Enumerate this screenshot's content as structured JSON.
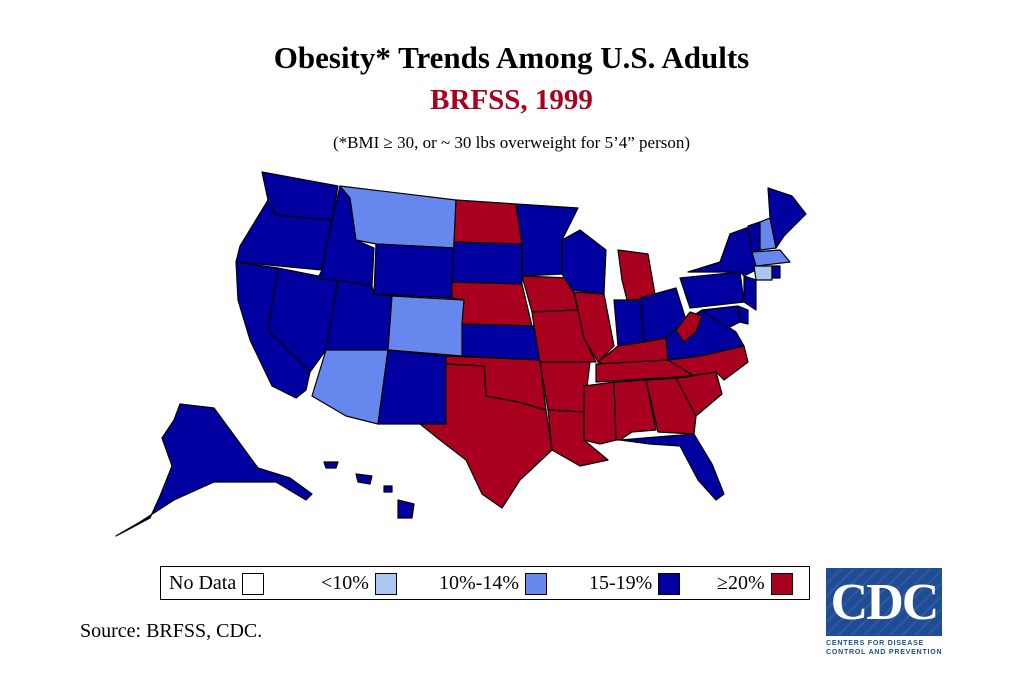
{
  "header": {
    "title": "Obesity* Trends Among U.S. Adults",
    "subtitle": "BRFSS, 1999",
    "note": "(*BMI ≥ 30, or ~ 30 lbs overweight for 5’4” person)"
  },
  "colors": {
    "no_data": "#ffffff",
    "lt10": "#a9c7f0",
    "10_14": "#6688ee",
    "15_19": "#0000a0",
    "ge20": "#a8001e",
    "subtitle": "#a8001e",
    "border": "#000000",
    "cdc_blue": "#1f4c94"
  },
  "legend": {
    "items": [
      {
        "label": "No Data",
        "key": "no_data"
      },
      {
        "label": "<10%",
        "key": "lt10"
      },
      {
        "label": "10%-14%",
        "key": "10_14"
      },
      {
        "label": "15-19%",
        "key": "15_19"
      },
      {
        "label": "≥20%",
        "key": "ge20"
      }
    ]
  },
  "map_data": {
    "categories": {
      "10_14": [
        "MT",
        "CO",
        "AZ",
        "NH",
        "MA"
      ],
      "lt10": [
        "CT"
      ],
      "ge20": [
        "ND",
        "NE",
        "IA",
        "MO",
        "IL",
        "MI",
        "WV",
        "KY",
        "TN",
        "AR",
        "OK",
        "TX",
        "LA",
        "MS",
        "AL",
        "GA",
        "SC",
        "NC"
      ],
      "15_19": [
        "WA",
        "OR",
        "CA",
        "NV",
        "ID",
        "WY",
        "UT",
        "NM",
        "SD",
        "KS",
        "MN",
        "WI",
        "IN",
        "OH",
        "PA",
        "NY",
        "VT",
        "ME",
        "NJ",
        "DE",
        "MD",
        "VA",
        "FL",
        "RI",
        "AK",
        "HI"
      ]
    }
  },
  "footer": {
    "source": "Source: BRFSS, CDC."
  },
  "logo": {
    "letters": "CDC",
    "line1": "CENTERS FOR DISEASE",
    "line2": "CONTROL AND PREVENTION"
  }
}
